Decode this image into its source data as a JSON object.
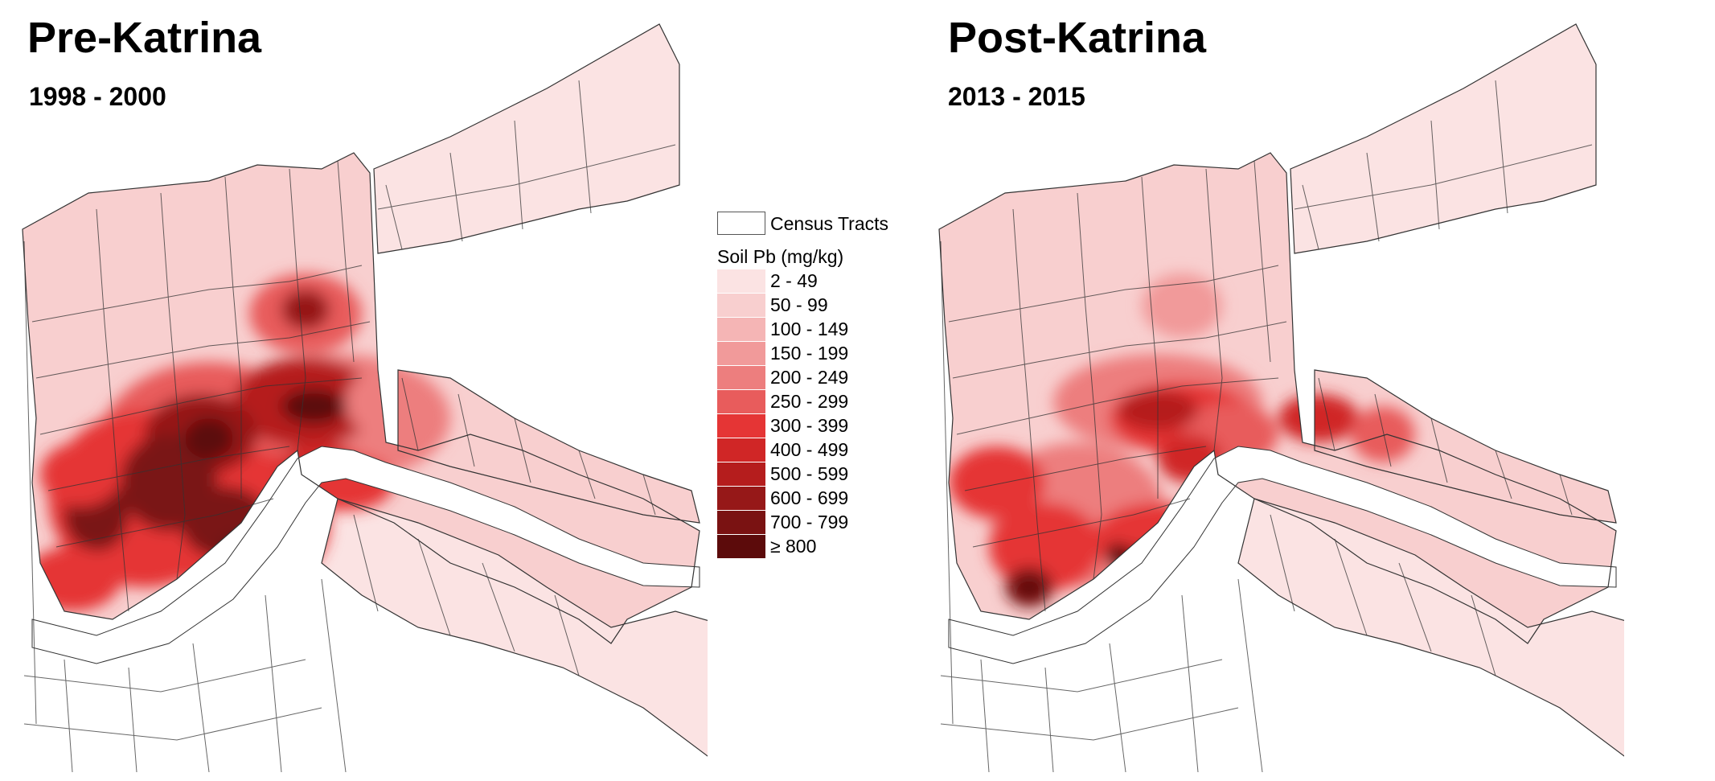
{
  "panels": [
    {
      "title": "Pre-Katrina",
      "subtitle": "1998 - 2000",
      "period": "pre"
    },
    {
      "title": "Post-Katrina",
      "subtitle": "2013 - 2015",
      "period": "post"
    }
  ],
  "legend": {
    "census_label": "Census Tracts",
    "scale_title": "Soil Pb (mg/kg)",
    "classes": [
      {
        "label": "2 - 49",
        "color": "#fbe3e3"
      },
      {
        "label": "50 - 99",
        "color": "#f8cfcf"
      },
      {
        "label": "100 - 149",
        "color": "#f5b5b5"
      },
      {
        "label": "150 - 199",
        "color": "#f19a9a"
      },
      {
        "label": "200 - 249",
        "color": "#ed7e7e"
      },
      {
        "label": "250 - 299",
        "color": "#e85c5c"
      },
      {
        "label": "300 - 399",
        "color": "#e53535"
      },
      {
        "label": "400 - 499",
        "color": "#d02626"
      },
      {
        "label": "500 - 599",
        "color": "#b51d1d"
      },
      {
        "label": "600 - 699",
        "color": "#961818"
      },
      {
        "label": "700 - 799",
        "color": "#7a1212"
      },
      {
        "label": "≥  800",
        "color": "#5c0b0b"
      }
    ]
  },
  "colors": {
    "tract_line": "#333333",
    "background": "#ffffff"
  }
}
